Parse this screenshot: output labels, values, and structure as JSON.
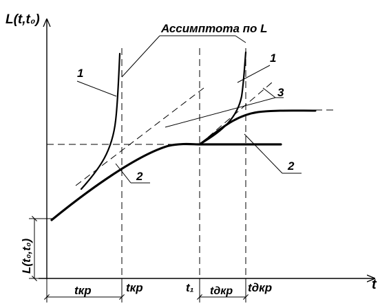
{
  "figure": {
    "y_axis_label": "L(t,t₀)",
    "x_axis_label": "t",
    "annotation_asymptote": "Ассимптота по L",
    "curve_labels": {
      "left_1": "1",
      "left_2": "2",
      "right_1": "1",
      "right_2": "2",
      "right_3": "3"
    },
    "x_ticks": {
      "t_kr": "tкр",
      "t_1": "t₁",
      "t_kr_d": "tдкр"
    },
    "dimension_labels": {
      "interval_t_kr": "tкр",
      "interval_t_kr_d": "tдкр",
      "initial_L": "L(t₀,t₀)"
    }
  }
}
